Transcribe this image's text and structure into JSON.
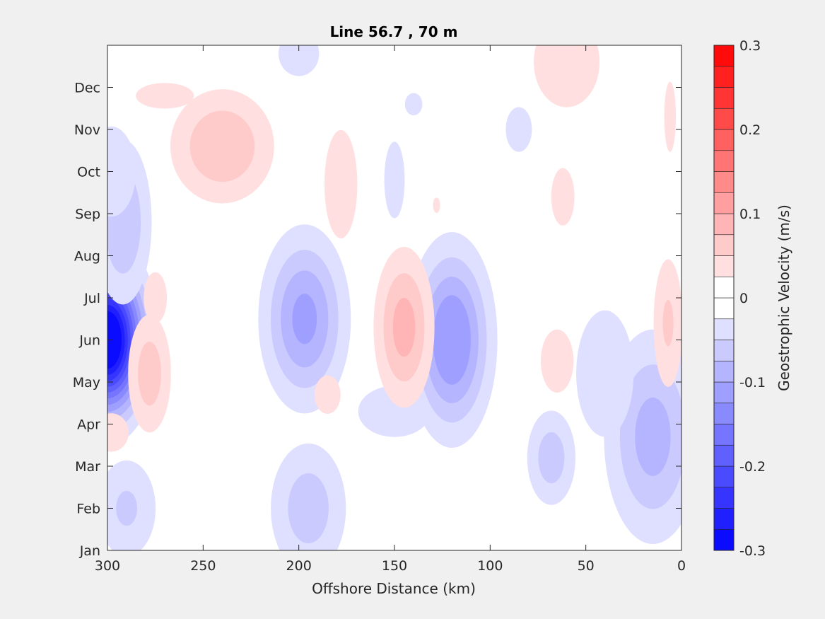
{
  "chart_data": {
    "type": "contour",
    "title": "Line 56.7 , 70 m",
    "xlabel": "Offshore Distance (km)",
    "ylabel": "",
    "x_reversed": true,
    "xlim": [
      300,
      0
    ],
    "xticks": [
      300,
      250,
      200,
      150,
      100,
      50,
      0
    ],
    "ylim": [
      "Jan",
      "Dec+1"
    ],
    "yticks": [
      "Jan",
      "Feb",
      "Mar",
      "Apr",
      "May",
      "Jun",
      "Jul",
      "Aug",
      "Sep",
      "Oct",
      "Nov",
      "Dec"
    ],
    "colorbar": {
      "label": "Geostrophic Velocity (m/s)",
      "limits": [
        -0.3,
        0.3
      ],
      "ticks": [
        "0.3",
        "0.2",
        "0.1",
        "0",
        "-0.1",
        "-0.2",
        "-0.3"
      ],
      "levels": [
        -0.3,
        -0.275,
        -0.25,
        -0.225,
        -0.2,
        -0.175,
        -0.15,
        -0.125,
        -0.1,
        -0.075,
        -0.05,
        -0.025,
        0,
        0.025,
        0.05,
        0.075,
        0.1,
        0.125,
        0.15,
        0.175,
        0.2,
        0.225,
        0.25,
        0.275,
        0.3
      ],
      "colormap": "blue-white-red",
      "color_min": "#0000ff",
      "color_max": "#ff0000"
    },
    "features": [
      {
        "kind": "negative",
        "x_km": 300,
        "month": 5.0,
        "peak": -0.3,
        "sx_km": 12,
        "sy_mon": 1.1
      },
      {
        "kind": "negative",
        "x_km": 292,
        "month": 7.8,
        "peak": -0.07,
        "sx_km": 10,
        "sy_mon": 1.3
      },
      {
        "kind": "negative",
        "x_km": 298,
        "month": 9.0,
        "peak": -0.04,
        "sx_km": 12,
        "sy_mon": 1.0
      },
      {
        "kind": "negative",
        "x_km": 290,
        "month": 1.0,
        "peak": -0.05,
        "sx_km": 12,
        "sy_mon": 0.9
      },
      {
        "kind": "negative",
        "x_km": 197,
        "month": 5.5,
        "peak": -0.1,
        "sx_km": 14,
        "sy_mon": 1.3
      },
      {
        "kind": "negative",
        "x_km": 195,
        "month": 1.0,
        "peak": -0.06,
        "sx_km": 14,
        "sy_mon": 1.1
      },
      {
        "kind": "negative",
        "x_km": 120,
        "month": 5.0,
        "peak": -0.12,
        "sx_km": 13,
        "sy_mon": 1.4
      },
      {
        "kind": "negative",
        "x_km": 150,
        "month": 3.3,
        "peak": -0.03,
        "sx_km": 25,
        "sy_mon": 0.8
      },
      {
        "kind": "negative",
        "x_km": 150,
        "month": 8.8,
        "peak": -0.03,
        "sx_km": 7,
        "sy_mon": 1.2
      },
      {
        "kind": "negative",
        "x_km": 140,
        "month": 10.6,
        "peak": -0.03,
        "sx_km": 6,
        "sy_mon": 0.35
      },
      {
        "kind": "negative",
        "x_km": 68,
        "month": 2.2,
        "peak": -0.06,
        "sx_km": 9,
        "sy_mon": 0.8
      },
      {
        "kind": "negative",
        "x_km": 85,
        "month": 10.0,
        "peak": -0.03,
        "sx_km": 9,
        "sy_mon": 0.7
      },
      {
        "kind": "negative",
        "x_km": 15,
        "month": 2.7,
        "peak": -0.08,
        "sx_km": 16,
        "sy_mon": 1.6
      },
      {
        "kind": "negative",
        "x_km": 40,
        "month": 4.2,
        "peak": -0.04,
        "sx_km": 14,
        "sy_mon": 1.4
      },
      {
        "kind": "negative",
        "x_km": 200,
        "month": 11.8,
        "peak": -0.03,
        "sx_km": 14,
        "sy_mon": 0.7
      },
      {
        "kind": "positive",
        "x_km": 145,
        "month": 5.3,
        "peak": 0.08,
        "sx_km": 10,
        "sy_mon": 1.2
      },
      {
        "kind": "positive",
        "x_km": 240,
        "month": 9.6,
        "peak": 0.07,
        "sx_km": 18,
        "sy_mon": 0.9
      },
      {
        "kind": "positive",
        "x_km": 270,
        "month": 10.8,
        "peak": 0.03,
        "sx_km": 20,
        "sy_mon": 0.4
      },
      {
        "kind": "positive",
        "x_km": 278,
        "month": 4.2,
        "peak": 0.06,
        "sx_km": 8,
        "sy_mon": 1.0
      },
      {
        "kind": "positive",
        "x_km": 275,
        "month": 6.0,
        "peak": 0.03,
        "sx_km": 8,
        "sy_mon": 0.8
      },
      {
        "kind": "positive",
        "x_km": 178,
        "month": 8.7,
        "peak": 0.04,
        "sx_km": 8,
        "sy_mon": 1.2
      },
      {
        "kind": "positive",
        "x_km": 185,
        "month": 3.7,
        "peak": 0.03,
        "sx_km": 9,
        "sy_mon": 0.6
      },
      {
        "kind": "positive",
        "x_km": 62,
        "month": 8.4,
        "peak": 0.03,
        "sx_km": 8,
        "sy_mon": 0.9
      },
      {
        "kind": "positive",
        "x_km": 65,
        "month": 4.5,
        "peak": 0.04,
        "sx_km": 8,
        "sy_mon": 0.7
      },
      {
        "kind": "positive",
        "x_km": 128,
        "month": 8.2,
        "peak": 0.025,
        "sx_km": 4,
        "sy_mon": 0.4
      },
      {
        "kind": "positive",
        "x_km": 60,
        "month": 11.6,
        "peak": 0.04,
        "sx_km": 16,
        "sy_mon": 1.0
      },
      {
        "kind": "positive",
        "x_km": 7,
        "month": 5.4,
        "peak": 0.05,
        "sx_km": 6,
        "sy_mon": 1.2
      },
      {
        "kind": "positive",
        "x_km": 6,
        "month": 10.3,
        "peak": 0.03,
        "sx_km": 4,
        "sy_mon": 1.1
      },
      {
        "kind": "positive",
        "x_km": 298,
        "month": 2.8,
        "peak": 0.03,
        "sx_km": 12,
        "sy_mon": 0.6
      }
    ]
  }
}
